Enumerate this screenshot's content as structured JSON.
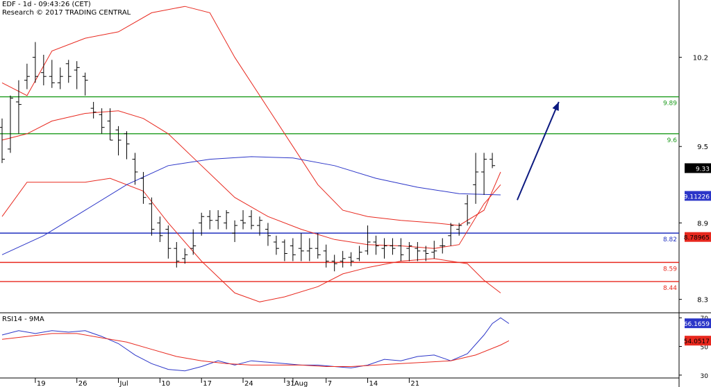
{
  "header": {
    "line1": "EDF - 1d - 09:43:26 (CET)",
    "line2": "Research © 2017 TRADING CENTRAL"
  },
  "rsi_label": "RSI14 - 9MA",
  "colors": {
    "price": "#000000",
    "bollinger": "#e8281e",
    "ma": "#2b35c8",
    "support": "#e8281e",
    "pivot": "#1e2fbf",
    "resistance": "#1a9a1a",
    "arrow": "#0c1a80",
    "grid": "#cccccc"
  },
  "chart_data": [
    {
      "type": "candlestick",
      "name": "price",
      "x_labels": [
        {
          "label": "19",
          "x": 4
        },
        {
          "label": "26",
          "x": 9
        },
        {
          "label": "Jul",
          "x": 14
        },
        {
          "label": "10",
          "x": 19
        },
        {
          "label": "17",
          "x": 24
        },
        {
          "label": "24",
          "x": 29
        },
        {
          "label": "31",
          "x": 34
        },
        {
          "label": "Aug",
          "x": 35
        },
        {
          "label": "7",
          "x": 39
        },
        {
          "label": "14",
          "x": 44
        },
        {
          "label": "21",
          "x": 49
        }
      ],
      "y_ticks": [
        8.3,
        8.9,
        9.5,
        10.2
      ],
      "ylim": [
        8.2,
        10.65
      ],
      "xlim": [
        0,
        67
      ],
      "grid": false,
      "bars": [
        [
          0,
          9.65,
          9.72,
          9.37,
          9.4
        ],
        [
          1,
          9.48,
          9.9,
          9.45,
          9.88
        ],
        [
          2,
          9.85,
          10.02,
          9.6,
          9.83
        ],
        [
          3,
          10.02,
          10.15,
          9.95,
          10.05
        ],
        [
          4,
          10.2,
          10.32,
          10.0,
          10.05
        ],
        [
          5,
          10.08,
          10.22,
          9.98,
          10.05
        ],
        [
          6,
          10.05,
          10.18,
          9.96,
          10.0
        ],
        [
          7,
          10.0,
          10.12,
          9.95,
          10.05
        ],
        [
          8,
          10.15,
          10.18,
          10.0,
          10.05
        ],
        [
          9,
          10.1,
          10.17,
          9.95,
          10.12
        ],
        [
          10,
          10.05,
          10.08,
          9.9,
          10.02
        ],
        [
          11,
          9.8,
          9.85,
          9.72,
          9.77
        ],
        [
          12,
          9.75,
          9.8,
          9.6,
          9.65
        ],
        [
          13,
          9.7,
          9.8,
          9.55,
          9.55
        ],
        [
          14,
          9.63,
          9.66,
          9.43,
          9.55
        ],
        [
          15,
          9.6,
          9.62,
          9.4,
          9.52
        ],
        [
          16,
          9.4,
          9.45,
          9.2,
          9.3
        ],
        [
          17,
          9.25,
          9.3,
          9.05,
          9.1
        ],
        [
          18,
          9.05,
          9.1,
          8.8,
          8.85
        ],
        [
          19,
          8.9,
          8.95,
          8.75,
          8.8
        ],
        [
          20,
          8.85,
          8.88,
          8.62,
          8.7
        ],
        [
          21,
          8.7,
          8.75,
          8.55,
          8.6
        ],
        [
          22,
          8.62,
          8.7,
          8.58,
          8.65
        ],
        [
          23,
          8.7,
          8.85,
          8.65,
          8.72
        ],
        [
          24,
          8.9,
          8.98,
          8.8,
          8.95
        ],
        [
          25,
          8.95,
          9.0,
          8.85,
          8.92
        ],
        [
          26,
          8.92,
          9.0,
          8.85,
          8.95
        ],
        [
          27,
          8.9,
          9.0,
          8.85,
          8.98
        ],
        [
          28,
          8.82,
          8.92,
          8.75,
          8.88
        ],
        [
          29,
          8.92,
          9.0,
          8.85,
          8.9
        ],
        [
          30,
          8.95,
          9.0,
          8.85,
          8.88
        ],
        [
          31,
          8.88,
          8.95,
          8.8,
          8.92
        ],
        [
          32,
          8.85,
          8.9,
          8.72,
          8.8
        ],
        [
          33,
          8.75,
          8.8,
          8.65,
          8.7
        ],
        [
          34,
          8.75,
          8.77,
          8.6,
          8.66
        ],
        [
          35,
          8.72,
          8.78,
          8.6,
          8.65
        ],
        [
          36,
          8.7,
          8.82,
          8.6,
          8.68
        ],
        [
          37,
          8.68,
          8.78,
          8.6,
          8.7
        ],
        [
          38,
          8.7,
          8.82,
          8.62,
          8.65
        ],
        [
          39,
          8.68,
          8.73,
          8.55,
          8.6
        ],
        [
          40,
          8.6,
          8.65,
          8.52,
          8.58
        ],
        [
          41,
          8.6,
          8.68,
          8.55,
          8.62
        ],
        [
          42,
          8.63,
          8.67,
          8.56,
          8.6
        ],
        [
          43,
          8.62,
          8.72,
          8.6,
          8.67
        ],
        [
          44,
          8.68,
          8.88,
          8.65,
          8.75
        ],
        [
          45,
          8.75,
          8.8,
          8.65,
          8.72
        ],
        [
          46,
          8.7,
          8.78,
          8.62,
          8.72
        ],
        [
          47,
          8.72,
          8.78,
          8.65,
          8.7
        ],
        [
          48,
          8.72,
          8.78,
          8.6,
          8.65
        ],
        [
          49,
          8.7,
          8.75,
          8.6,
          8.72
        ],
        [
          50,
          8.7,
          8.75,
          8.6,
          8.68
        ],
        [
          51,
          8.68,
          8.72,
          8.6,
          8.66
        ],
        [
          52,
          8.67,
          8.76,
          8.62,
          8.68
        ],
        [
          53,
          8.72,
          8.78,
          8.66,
          8.72
        ],
        [
          54,
          8.8,
          8.9,
          8.72,
          8.88
        ],
        [
          55,
          8.85,
          8.9,
          8.8,
          8.88
        ],
        [
          56,
          9.05,
          9.12,
          8.88,
          8.9
        ],
        [
          57,
          9.2,
          9.45,
          9.05,
          9.3
        ],
        [
          58,
          9.3,
          9.45,
          9.12,
          9.4
        ],
        [
          59,
          9.4,
          9.45,
          9.33,
          9.35
        ]
      ],
      "overlays": [
        {
          "name": "upper-band",
          "points": [
            [
              0,
              10.0
            ],
            [
              3,
              9.9
            ],
            [
              6,
              10.25
            ],
            [
              10,
              10.35
            ],
            [
              14,
              10.4
            ],
            [
              18,
              10.55
            ],
            [
              22,
              10.6
            ],
            [
              25,
              10.55
            ],
            [
              28,
              10.2
            ],
            [
              32,
              9.8
            ],
            [
              35,
              9.5
            ],
            [
              38,
              9.2
            ],
            [
              41,
              9.0
            ],
            [
              44,
              8.95
            ],
            [
              48,
              8.92
            ],
            [
              52,
              8.9
            ],
            [
              55,
              8.88
            ],
            [
              58,
              9.0
            ],
            [
              60,
              9.3
            ]
          ]
        },
        {
          "name": "middle-band",
          "points": [
            [
              0,
              9.55
            ],
            [
              3,
              9.6
            ],
            [
              6,
              9.7
            ],
            [
              10,
              9.76
            ],
            [
              14,
              9.78
            ],
            [
              17,
              9.72
            ],
            [
              20,
              9.6
            ],
            [
              24,
              9.35
            ],
            [
              28,
              9.1
            ],
            [
              32,
              8.95
            ],
            [
              36,
              8.85
            ],
            [
              40,
              8.77
            ],
            [
              44,
              8.73
            ],
            [
              48,
              8.72
            ],
            [
              52,
              8.7
            ],
            [
              55,
              8.73
            ],
            [
              58,
              9.05
            ],
            [
              60,
              9.2
            ]
          ]
        },
        {
          "name": "lower-band",
          "points": [
            [
              0,
              8.95
            ],
            [
              3,
              9.22
            ],
            [
              6,
              9.22
            ],
            [
              10,
              9.22
            ],
            [
              13,
              9.25
            ],
            [
              17,
              9.15
            ],
            [
              20,
              8.9
            ],
            [
              24,
              8.6
            ],
            [
              28,
              8.35
            ],
            [
              31,
              8.28
            ],
            [
              34,
              8.32
            ],
            [
              38,
              8.4
            ],
            [
              41,
              8.5
            ],
            [
              44,
              8.55
            ],
            [
              48,
              8.6
            ],
            [
              52,
              8.62
            ],
            [
              56,
              8.58
            ],
            [
              58,
              8.45
            ],
            [
              60,
              8.35
            ]
          ]
        },
        {
          "name": "moving-average",
          "points": [
            [
              0,
              8.65
            ],
            [
              5,
              8.8
            ],
            [
              10,
              9.0
            ],
            [
              15,
              9.2
            ],
            [
              20,
              9.35
            ],
            [
              25,
              9.4
            ],
            [
              30,
              9.42
            ],
            [
              35,
              9.41
            ],
            [
              40,
              9.35
            ],
            [
              45,
              9.25
            ],
            [
              50,
              9.18
            ],
            [
              55,
              9.13
            ],
            [
              60,
              9.12
            ]
          ]
        }
      ],
      "levels": [
        {
          "name": "resistance-2",
          "value": 9.89,
          "label": "9.89",
          "color_key": "resistance"
        },
        {
          "name": "resistance-1",
          "value": 9.6,
          "label": "9.6",
          "color_key": "resistance"
        },
        {
          "name": "pivot",
          "value": 8.82,
          "label": "8.82",
          "color_key": "pivot"
        },
        {
          "name": "support-1",
          "value": 8.59,
          "label": "8.59",
          "color_key": "support"
        },
        {
          "name": "support-2",
          "value": 8.44,
          "label": "8.44",
          "color_key": "support"
        }
      ],
      "arrow": {
        "from": [
          62,
          9.08
        ],
        "to": [
          67,
          9.85
        ]
      },
      "value_tags": [
        {
          "name": "last-price-tag",
          "value": 9.33,
          "label": "9.33",
          "bg": "#000000",
          "fg": "#ffffff"
        },
        {
          "name": "ma-value-tag",
          "value": 9.11226,
          "label": "9.11226",
          "bg": "#2b35c8",
          "fg": "#ffffff"
        },
        {
          "name": "lower-band-tag",
          "value": 8.78965,
          "label": "8.78965",
          "bg": "#e8281e",
          "fg": "#000000"
        }
      ]
    },
    {
      "type": "line",
      "name": "rsi",
      "y_ticks": [
        30,
        50,
        70
      ],
      "ylim": [
        28,
        73
      ],
      "series": [
        {
          "name": "rsi14",
          "color_key": "ma",
          "points": [
            [
              0,
              58
            ],
            [
              2,
              61
            ],
            [
              4,
              59
            ],
            [
              6,
              61
            ],
            [
              8,
              60
            ],
            [
              10,
              61
            ],
            [
              12,
              57
            ],
            [
              14,
              52
            ],
            [
              16,
              44
            ],
            [
              18,
              38
            ],
            [
              20,
              34
            ],
            [
              22,
              33
            ],
            [
              24,
              36
            ],
            [
              26,
              40
            ],
            [
              28,
              37
            ],
            [
              30,
              40
            ],
            [
              32,
              39
            ],
            [
              34,
              38
            ],
            [
              36,
              37
            ],
            [
              38,
              37
            ],
            [
              40,
              36
            ],
            [
              42,
              35
            ],
            [
              44,
              37
            ],
            [
              46,
              41
            ],
            [
              48,
              40
            ],
            [
              50,
              43
            ],
            [
              52,
              44
            ],
            [
              54,
              40
            ],
            [
              56,
              45
            ],
            [
              58,
              58
            ],
            [
              59,
              66
            ],
            [
              60,
              70
            ],
            [
              61,
              66
            ]
          ]
        },
        {
          "name": "rsi-ma",
          "color_key": "bollinger",
          "points": [
            [
              0,
              55
            ],
            [
              3,
              57
            ],
            [
              6,
              59
            ],
            [
              9,
              59
            ],
            [
              12,
              56
            ],
            [
              15,
              53
            ],
            [
              18,
              48
            ],
            [
              21,
              43
            ],
            [
              24,
              40
            ],
            [
              27,
              38
            ],
            [
              30,
              37
            ],
            [
              33,
              37
            ],
            [
              36,
              37
            ],
            [
              39,
              36
            ],
            [
              42,
              36
            ],
            [
              45,
              37
            ],
            [
              48,
              38
            ],
            [
              51,
              39
            ],
            [
              54,
              40
            ],
            [
              57,
              44
            ],
            [
              60,
              51
            ],
            [
              61,
              54
            ]
          ]
        }
      ],
      "value_tags": [
        {
          "name": "rsi-value-tag",
          "value": 66.1659,
          "label": "66.1659",
          "bg": "#2b35c8",
          "fg": "#ffffff"
        },
        {
          "name": "rsi-ma-value-tag",
          "value": 54.0517,
          "label": "54.0517",
          "bg": "#e8281e",
          "fg": "#000000"
        }
      ]
    }
  ]
}
